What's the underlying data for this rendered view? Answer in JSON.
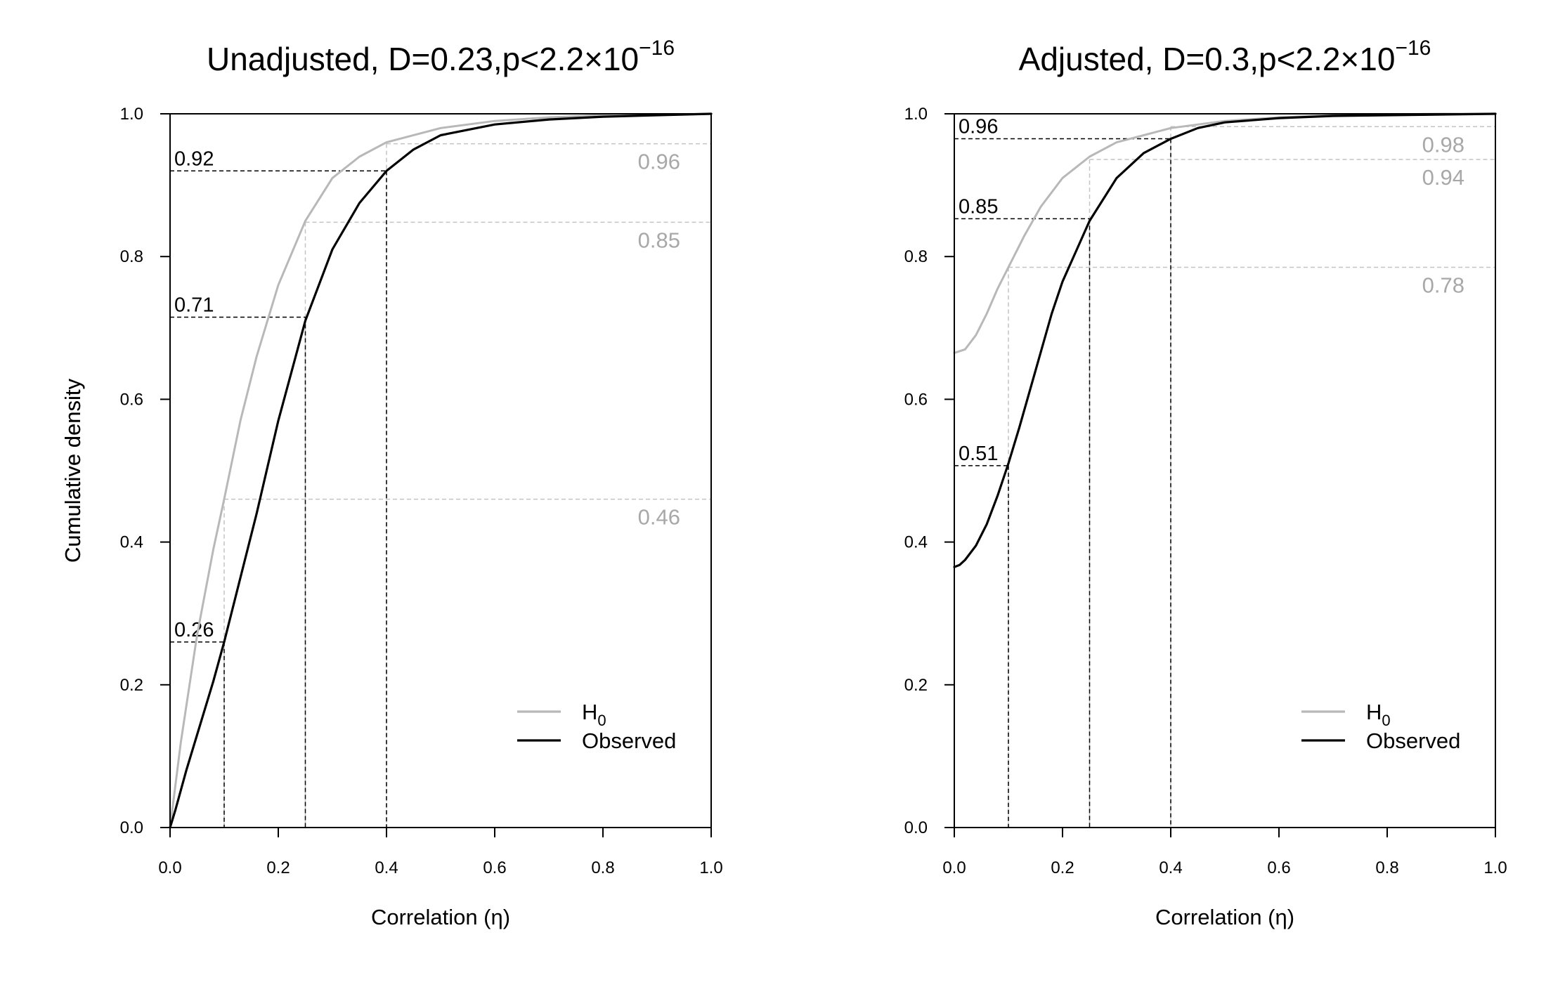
{
  "chart_data": [
    {
      "type": "line",
      "title": {
        "main": "Unadjusted, D=0.23,p<2.2",
        "times": "×",
        "base": "10",
        "exponent": "−16"
      },
      "xlabel": "Correlation (η)",
      "ylabel": "Cumulative density",
      "xlim": [
        0,
        1
      ],
      "ylim": [
        0,
        1
      ],
      "xticks": [
        "0.0",
        "0.2",
        "0.4",
        "0.6",
        "0.8",
        "1.0"
      ],
      "yticks": [
        "0.0",
        "0.2",
        "0.4",
        "0.6",
        "0.8",
        "1.0"
      ],
      "legend": {
        "position": "bottom-right",
        "entries": [
          {
            "label": "H",
            "subscript": "0",
            "color": "#b8b8b8"
          },
          {
            "label": "Observed",
            "color": "#000000"
          }
        ]
      },
      "series": [
        {
          "name": "H0",
          "color": "#b8b8b8",
          "x": [
            0,
            0.02,
            0.05,
            0.08,
            0.1,
            0.13,
            0.16,
            0.2,
            0.25,
            0.3,
            0.35,
            0.4,
            0.5,
            0.6,
            0.7,
            0.8,
            0.9,
            1.0
          ],
          "y": [
            0,
            0.12,
            0.27,
            0.39,
            0.46,
            0.57,
            0.66,
            0.76,
            0.85,
            0.91,
            0.94,
            0.96,
            0.98,
            0.99,
            0.995,
            0.998,
            0.999,
            1.0
          ]
        },
        {
          "name": "Observed",
          "color": "#000000",
          "x": [
            0,
            0.01,
            0.03,
            0.05,
            0.08,
            0.1,
            0.13,
            0.16,
            0.2,
            0.25,
            0.3,
            0.35,
            0.4,
            0.45,
            0.5,
            0.6,
            0.7,
            0.8,
            0.9,
            1.0
          ],
          "y": [
            0,
            0.025,
            0.08,
            0.13,
            0.205,
            0.26,
            0.35,
            0.44,
            0.57,
            0.71,
            0.81,
            0.875,
            0.92,
            0.95,
            0.97,
            0.985,
            0.992,
            0.996,
            0.998,
            1.0
          ]
        }
      ],
      "cutoffs": [
        {
          "x": 0.1,
          "observed": 0.26,
          "observed_label": "0.26",
          "h0": 0.46,
          "h0_label": "0.46"
        },
        {
          "x": 0.25,
          "observed": 0.715,
          "observed_label": "0.71",
          "h0": 0.848,
          "h0_label": "0.85"
        },
        {
          "x": 0.4,
          "observed": 0.92,
          "observed_label": "0.92",
          "h0": 0.958,
          "h0_label": "0.96"
        }
      ]
    },
    {
      "type": "line",
      "title": {
        "main": "Adjusted, D=0.3,p<2.2",
        "times": "×",
        "base": "10",
        "exponent": "−16"
      },
      "xlabel": "Correlation (η)",
      "ylabel": "Cumulative density",
      "xlim": [
        0,
        1
      ],
      "ylim": [
        0,
        1
      ],
      "xticks": [
        "0.0",
        "0.2",
        "0.4",
        "0.6",
        "0.8",
        "1.0"
      ],
      "yticks": [
        "0.0",
        "0.2",
        "0.4",
        "0.6",
        "0.8",
        "1.0"
      ],
      "legend": {
        "position": "bottom-right",
        "entries": [
          {
            "label": "H",
            "subscript": "0",
            "color": "#b8b8b8"
          },
          {
            "label": "Observed",
            "color": "#000000"
          }
        ]
      },
      "series": [
        {
          "name": "H0",
          "color": "#b8b8b8",
          "x": [
            0,
            0.02,
            0.04,
            0.06,
            0.08,
            0.1,
            0.13,
            0.16,
            0.2,
            0.25,
            0.3,
            0.35,
            0.4,
            0.5,
            0.6,
            0.7,
            0.8,
            0.9,
            1.0
          ],
          "y": [
            0.665,
            0.67,
            0.69,
            0.72,
            0.755,
            0.785,
            0.83,
            0.87,
            0.91,
            0.94,
            0.96,
            0.97,
            0.98,
            0.99,
            0.995,
            0.998,
            0.999,
            1.0,
            1.0
          ]
        },
        {
          "name": "Observed",
          "color": "#000000",
          "x": [
            0,
            0.01,
            0.02,
            0.04,
            0.06,
            0.08,
            0.1,
            0.12,
            0.15,
            0.18,
            0.2,
            0.25,
            0.3,
            0.35,
            0.4,
            0.45,
            0.5,
            0.6,
            0.7,
            0.8,
            0.9,
            1.0
          ],
          "y": [
            0.365,
            0.368,
            0.375,
            0.395,
            0.425,
            0.465,
            0.51,
            0.56,
            0.64,
            0.72,
            0.765,
            0.85,
            0.91,
            0.945,
            0.965,
            0.98,
            0.988,
            0.994,
            0.997,
            0.998,
            0.999,
            1.0
          ]
        }
      ],
      "cutoffs": [
        {
          "x": 0.1,
          "observed": 0.507,
          "observed_label": "0.51",
          "h0": 0.785,
          "h0_label": "0.78"
        },
        {
          "x": 0.25,
          "observed": 0.853,
          "observed_label": "0.85",
          "h0": 0.936,
          "h0_label": "0.94"
        },
        {
          "x": 0.4,
          "observed": 0.965,
          "observed_label": "0.96",
          "h0": 0.982,
          "h0_label": "0.98"
        }
      ]
    }
  ]
}
